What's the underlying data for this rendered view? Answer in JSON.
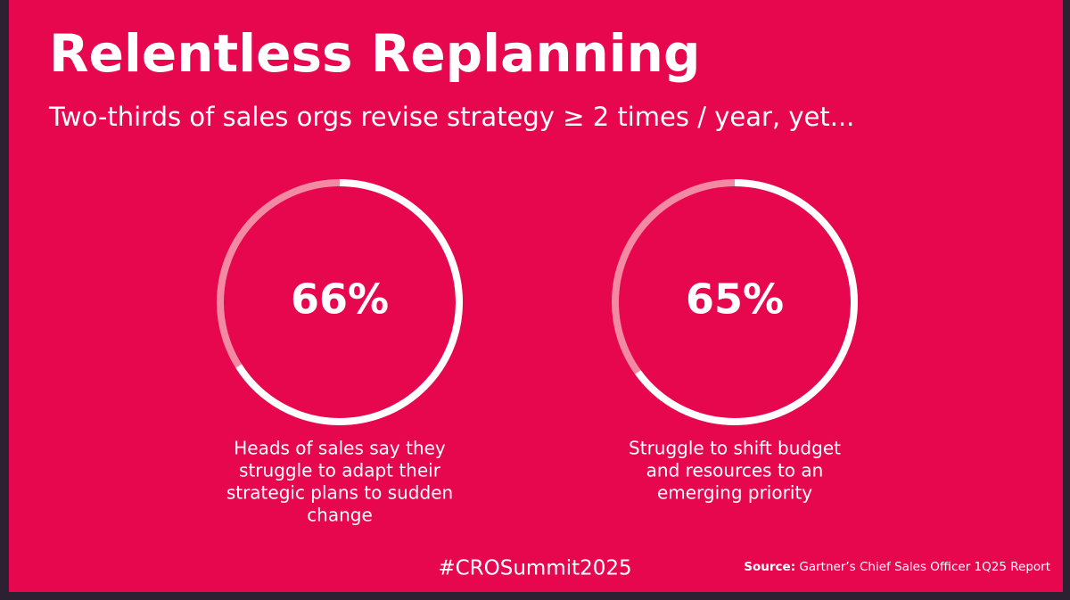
{
  "header": {
    "title": "Relentless Replanning",
    "subtitle": "Two-thirds of sales orgs revise strategy ≥ 2 times / year, yet..."
  },
  "stats": [
    {
      "value": 66,
      "value_label": "66%",
      "caption_lines": [
        "Heads of sales say they",
        "struggle to adapt their",
        "strategic plans to sudden",
        "change"
      ]
    },
    {
      "value": 65,
      "value_label": "65%",
      "caption_lines": [
        "Struggle to shift budget",
        "and resources to an",
        "emerging priority"
      ]
    }
  ],
  "footer": {
    "hashtag": "#CROSummit2025",
    "source_label": "Source:",
    "source_text": "Gartner’s Chief Sales Officer 1Q25 Report"
  }
}
